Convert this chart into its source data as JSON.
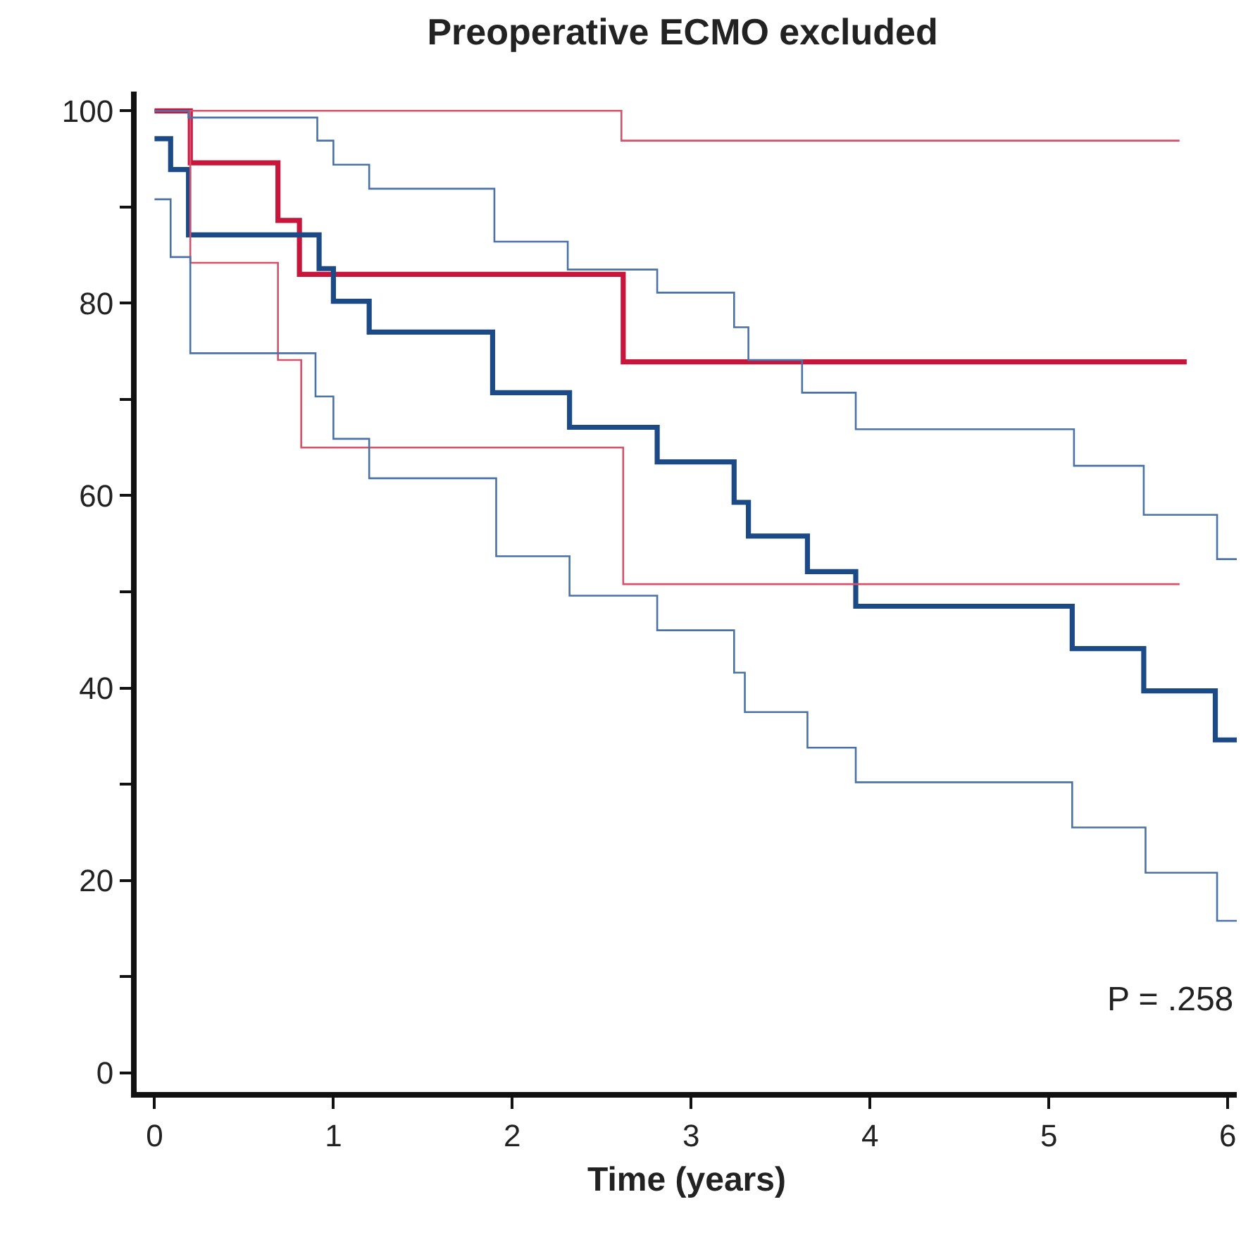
{
  "chart_data": {
    "type": "step",
    "title": "Preoperative ECMO excluded",
    "xlabel": "Time (years)",
    "xlim": [
      -0.1,
      6.05
    ],
    "xticks": [
      0,
      1,
      2,
      3,
      4,
      5,
      6
    ],
    "ylim": [
      -2,
      102
    ],
    "yticks": [
      0,
      {
        "value": 10,
        "label": null
      },
      20,
      {
        "value": 30,
        "label": null
      },
      40,
      {
        "value": 50,
        "label": null
      },
      60,
      {
        "value": 70,
        "label": null
      },
      80,
      {
        "value": 90,
        "label": null
      },
      100
    ],
    "grid": false,
    "marker": "none",
    "line_style": "solid",
    "annotations": [
      "P = .258"
    ],
    "series": [
      {
        "color": "#c8153c",
        "x": [
          0,
          0.2,
          0.69,
          0.81,
          2.62,
          5.77
        ],
        "values": [
          100,
          94.6,
          88.6,
          83.0,
          73.9,
          73.9
        ]
      },
      {
        "color": "#1b4a86",
        "x": [
          0,
          0.09,
          0.19,
          0.92,
          1.0,
          1.2,
          1.89,
          2.32,
          2.81,
          3.24,
          3.32,
          3.65,
          3.92,
          5.13,
          5.53,
          5.93,
          6.05
        ],
        "values": [
          97.1,
          93.9,
          87.1,
          83.6,
          80.2,
          77.0,
          70.7,
          67.1,
          63.5,
          59.3,
          55.8,
          52.1,
          48.5,
          44.1,
          39.7,
          34.6,
          34.6
        ]
      },
      {
        "color": "#d6506a",
        "x": [
          0,
          2.61,
          5.73
        ],
        "values": [
          100,
          96.9,
          96.9
        ]
      },
      {
        "color": "#d6506a",
        "x": [
          0,
          0.2,
          0.69,
          0.82,
          2.62,
          5.73
        ],
        "values": [
          100,
          84.2,
          74.1,
          65.0,
          50.8,
          50.8
        ]
      },
      {
        "color": "#4a72a6",
        "x": [
          0,
          0.19,
          0.91,
          1.0,
          1.2,
          1.9,
          2.31,
          2.81,
          3.24,
          3.32,
          3.62,
          3.92,
          5.14,
          5.53,
          5.94,
          6.05
        ],
        "values": [
          100,
          99.3,
          96.9,
          94.4,
          91.9,
          86.4,
          83.5,
          81.1,
          77.5,
          74.1,
          70.7,
          66.9,
          63.1,
          58.0,
          53.4,
          53.4
        ]
      },
      {
        "color": "#4a72a6",
        "x": [
          0,
          0.09,
          0.2,
          0.9,
          1.0,
          1.2,
          1.91,
          2.32,
          2.81,
          3.24,
          3.3,
          3.65,
          3.92,
          5.13,
          5.54,
          5.94,
          6.05
        ],
        "values": [
          90.8,
          84.8,
          74.8,
          70.3,
          65.9,
          61.8,
          53.7,
          49.6,
          46.0,
          41.6,
          37.5,
          33.8,
          30.2,
          25.5,
          20.8,
          15.8,
          15.8
        ]
      }
    ]
  }
}
